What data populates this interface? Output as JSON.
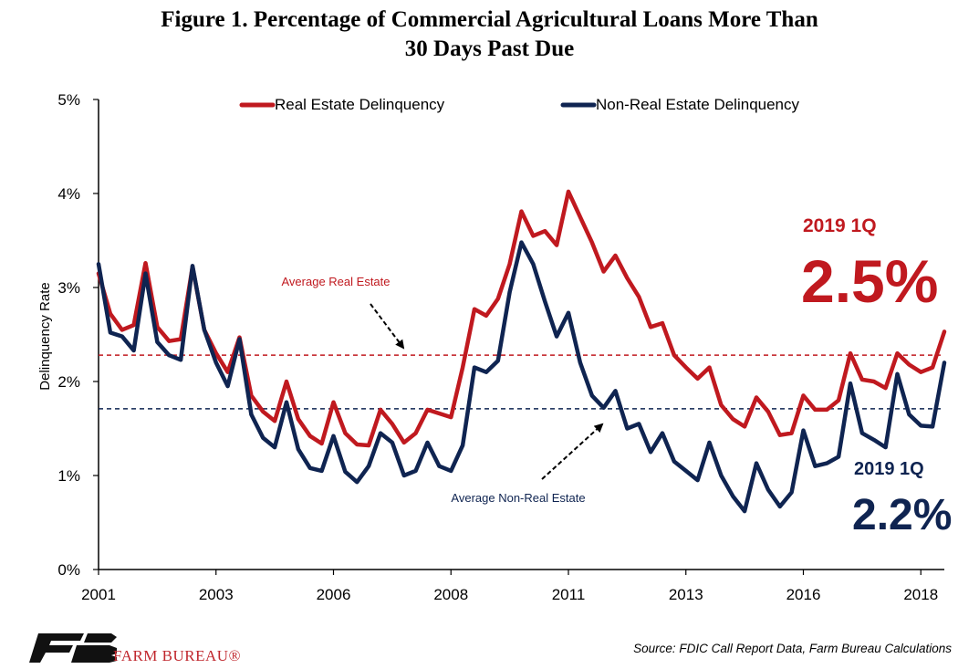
{
  "title_line1": "Figure 1. Percentage of Commercial Agricultural Loans More Than",
  "title_line2": "30 Days Past Due",
  "source": "Source: FDIC Call Report Data, Farm Bureau Calculations",
  "logo": {
    "text": "FARM BUREAU®",
    "color": "#c0272d"
  },
  "colors": {
    "real_estate": "#c0191f",
    "non_real_estate": "#0f2451"
  },
  "chart_data": {
    "type": "line",
    "title": "Figure 1. Percentage of Commercial Agricultural Loans More Than 30 Days Past Due",
    "ylabel": "Delinquency Rate",
    "xlabel": "",
    "ylim": [
      0,
      5
    ],
    "xlim": [
      0,
      72
    ],
    "y_ticks": [
      "0%",
      "1%",
      "2%",
      "3%",
      "4%",
      "5%"
    ],
    "y_tick_values": [
      0,
      1,
      2,
      3,
      4,
      5
    ],
    "x_ticks": [
      "2001",
      "2003",
      "2006",
      "2008",
      "2011",
      "2013",
      "2016",
      "2018"
    ],
    "x_tick_positions": [
      0,
      10,
      20,
      30,
      40,
      50,
      60,
      70
    ],
    "grid": false,
    "legend_position": "top",
    "series": [
      {
        "name": "Real Estate Delinquency",
        "color": "#c0191f",
        "values": [
          3.15,
          2.72,
          2.55,
          2.6,
          3.26,
          2.58,
          2.43,
          2.45,
          3.22,
          2.55,
          2.3,
          2.1,
          2.47,
          1.85,
          1.68,
          1.58,
          2.0,
          1.6,
          1.42,
          1.34,
          1.78,
          1.45,
          1.33,
          1.32,
          1.7,
          1.55,
          1.35,
          1.45,
          1.7,
          1.66,
          1.62,
          2.15,
          2.77,
          2.7,
          2.88,
          3.25,
          3.81,
          3.55,
          3.6,
          3.45,
          4.02,
          3.75,
          3.48,
          3.17,
          3.34,
          3.1,
          2.9,
          2.58,
          2.62,
          2.28,
          2.15,
          2.03,
          2.15,
          1.75,
          1.6,
          1.52,
          1.83,
          1.68,
          1.43,
          1.45,
          1.85,
          1.7,
          1.7,
          1.8,
          2.3,
          2.02,
          2.0,
          1.93,
          2.3,
          2.18,
          2.1,
          2.15,
          2.53
        ]
      },
      {
        "name": "Non-Real Estate Delinquency",
        "color": "#0f2451",
        "values": [
          3.25,
          2.52,
          2.48,
          2.33,
          3.15,
          2.42,
          2.28,
          2.23,
          3.23,
          2.55,
          2.2,
          1.95,
          2.45,
          1.65,
          1.4,
          1.3,
          1.78,
          1.28,
          1.08,
          1.05,
          1.42,
          1.04,
          0.93,
          1.1,
          1.45,
          1.35,
          1.0,
          1.05,
          1.35,
          1.1,
          1.05,
          1.32,
          2.15,
          2.1,
          2.22,
          2.95,
          3.48,
          3.25,
          2.85,
          2.48,
          2.73,
          2.2,
          1.85,
          1.72,
          1.9,
          1.5,
          1.55,
          1.25,
          1.45,
          1.15,
          1.05,
          0.95,
          1.35,
          1.0,
          0.78,
          0.62,
          1.13,
          0.85,
          0.67,
          0.82,
          1.48,
          1.1,
          1.13,
          1.2,
          1.98,
          1.45,
          1.38,
          1.3,
          2.08,
          1.65,
          1.53,
          1.52,
          2.2
        ]
      }
    ],
    "reference_lines": [
      {
        "label": "Average Real Estate",
        "value": 2.28,
        "color": "#c0191f"
      },
      {
        "label": "Average Non-Real Estate",
        "value": 1.71,
        "color": "#0f2451"
      }
    ],
    "annotations": [
      {
        "label": "2019 1Q",
        "value_text": "2.5%",
        "color": "#c0191f"
      },
      {
        "label": "2019 1Q",
        "value_text": "2.2%",
        "color": "#0f2451"
      }
    ]
  }
}
